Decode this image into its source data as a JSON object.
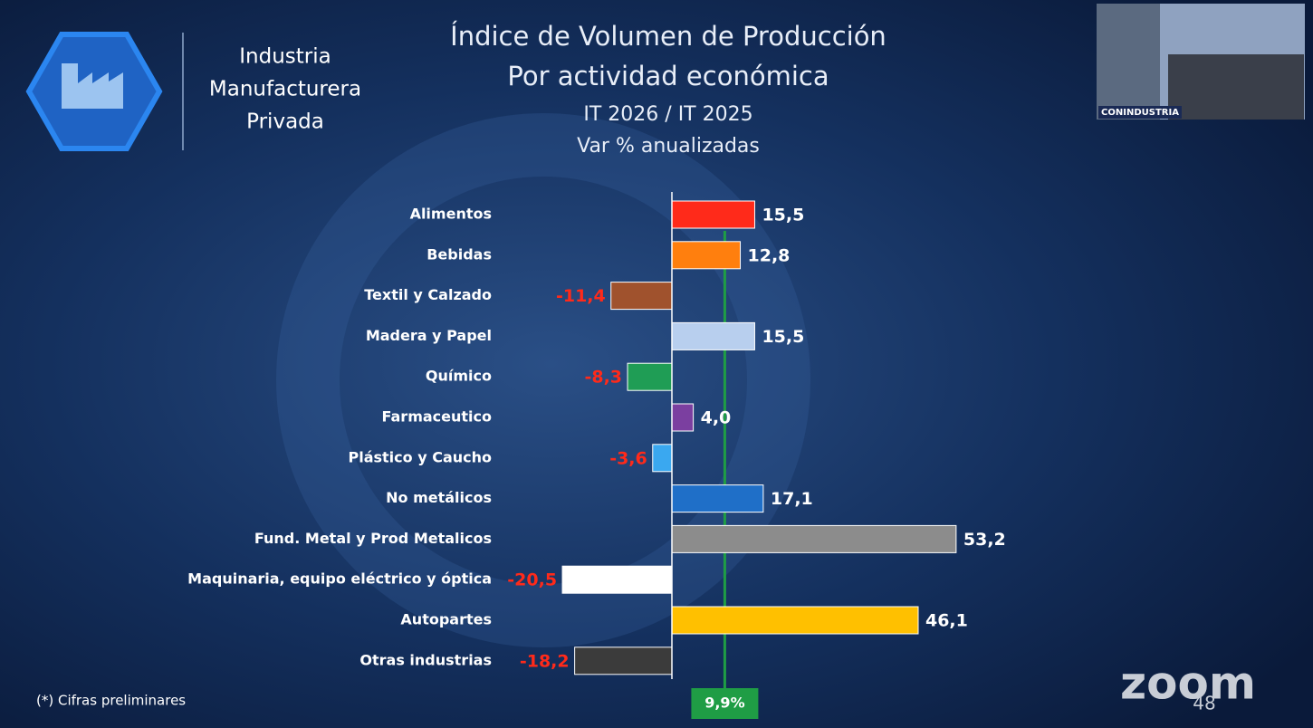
{
  "brand": {
    "lines": [
      "Industria",
      "Manufacturera",
      "Privada"
    ]
  },
  "chart_data": {
    "type": "hbar",
    "title": "Índice de Volumen de Producción",
    "subtitle": [
      "Por actividad económica",
      "IT 2026 / IT 2025",
      "Var % anualizadas"
    ],
    "categories": [
      "Alimentos",
      "Bebidas",
      "Textil y Calzado",
      "Madera y Papel",
      "Químico",
      "Farmaceutico",
      "Plástico y Caucho",
      "No metálicos",
      "Fund. Metal y Prod Metalicos",
      "Maquinaria, equipo eléctrico y óptica",
      "Autopartes",
      "Otras industrias"
    ],
    "values": [
      15.5,
      12.8,
      -11.4,
      15.5,
      -8.3,
      4.0,
      -3.6,
      17.1,
      53.2,
      -20.5,
      46.1,
      -18.2
    ],
    "value_labels": [
      "15,5",
      "12,8",
      "-11,4",
      "15,5",
      "-8,3",
      "4,0",
      "-3,6",
      "17,1",
      "53,2",
      "-20,5",
      "46,1",
      "-18,2"
    ],
    "colors": [
      "#ff2a1a",
      "#ff7f0e",
      "#a0522d",
      "#b8cfee",
      "#1f9d55",
      "#7b3fa0",
      "#3aa8f0",
      "#1f6fc8",
      "#8c8c8c",
      "#ffffff",
      "#ffc000",
      "#3b3b3b"
    ],
    "reference": {
      "value": 9.9,
      "label": "9,9%",
      "color": "#1f9d45"
    },
    "footnote": "(*) Cifras preliminares"
  },
  "video": {
    "caption": "CONINDUSTRIA"
  },
  "zoom": {
    "logo": "zoom",
    "page": "48"
  }
}
